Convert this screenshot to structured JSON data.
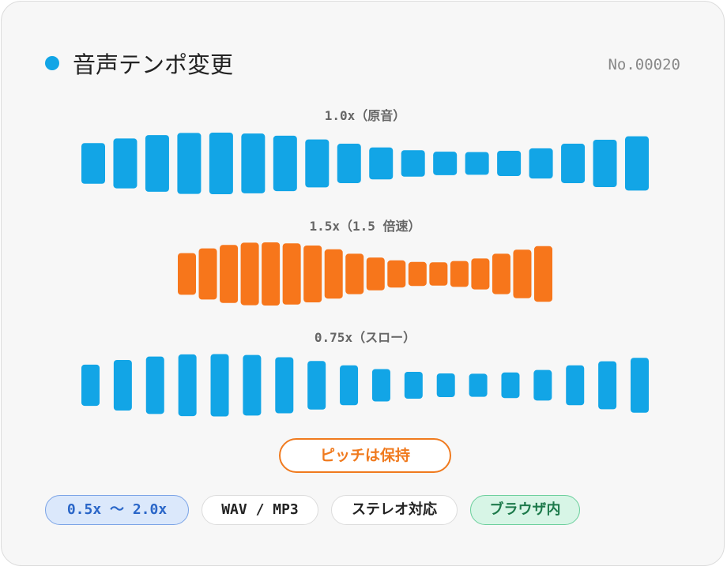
{
  "header": {
    "title": "音声テンポ変更",
    "number": "No.00020"
  },
  "rows": [
    {
      "label": "1.0x（原音）"
    },
    {
      "label": "1.5x（1.5 倍速）"
    },
    {
      "label": "0.75x（スロー）"
    }
  ],
  "badge": "ピッチは保持",
  "tags": [
    "0.5x 〜 2.0x",
    "WAV / MP3",
    "ステレオ対応",
    "ブラウザ内"
  ]
}
